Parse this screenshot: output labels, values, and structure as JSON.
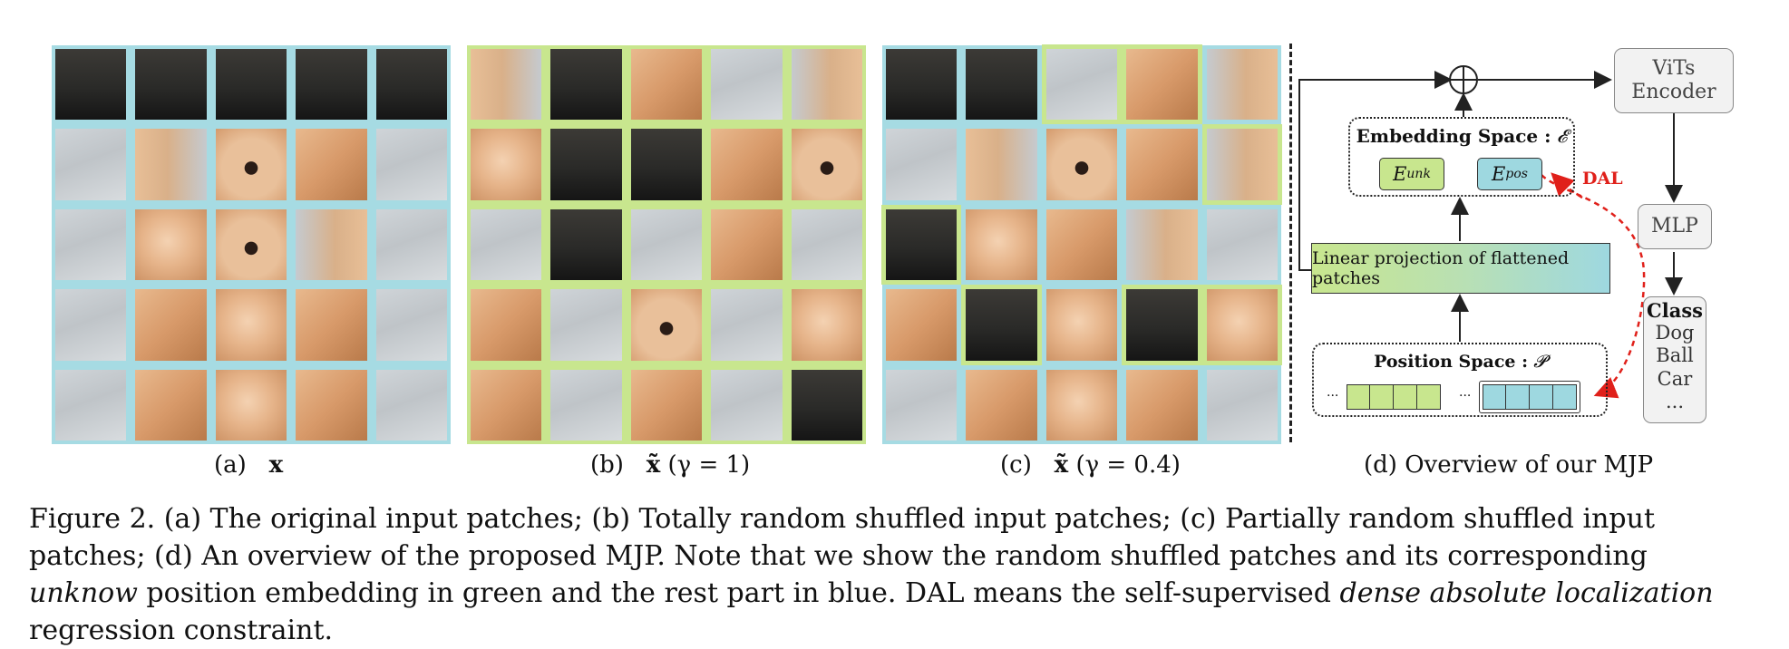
{
  "colors": {
    "blue_frame": "#a6dbe3",
    "green_frame": "#c8e68e",
    "dal_red": "#e0201a",
    "green_token": "#c8e68e",
    "blue_token": "#9ed8e0"
  },
  "panels": [
    {
      "id": "a",
      "sublabel": "(a)",
      "symbol": "x",
      "condition": ""
    },
    {
      "id": "b",
      "sublabel": "(b)",
      "symbol": "x̃",
      "condition": "(γ = 1)"
    },
    {
      "id": "c",
      "sublabel": "(c)",
      "symbol": "x̃",
      "condition": "(γ = 0.4)"
    }
  ],
  "diagram": {
    "sublabel": "(d) Overview of our MJP",
    "plus_symbol": "⊕",
    "vits": "ViTs\nEncoder",
    "mlp": "MLP",
    "class_title": "Class",
    "classes": [
      "Dog",
      "Ball",
      "Car",
      "..."
    ],
    "embedding_title": "Embedding Space :",
    "embedding_symbol": "𝓔",
    "e_unk_base": "E",
    "e_unk_sub": "unk",
    "e_pos_base": "E",
    "e_pos_sub": "pos",
    "dal": "DAL",
    "linear": "Linear projection of flattened patches",
    "position_title": "Position Space :",
    "position_symbol": "𝓟",
    "dots": "..."
  },
  "caption": {
    "p1": "Figure 2. (a) The original input patches; (b) Totally random shuffled input patches; (c) Partially random shuffled input patches; (d) An overview of the proposed MJP. Note that we show the random shuffled patches and its corresponding ",
    "em1": "unknow",
    "p2": " position embedding in green and the rest part in blue. DAL means the self-supervised ",
    "em2": "dense absolute localization",
    "p3": " regression constraint."
  }
}
